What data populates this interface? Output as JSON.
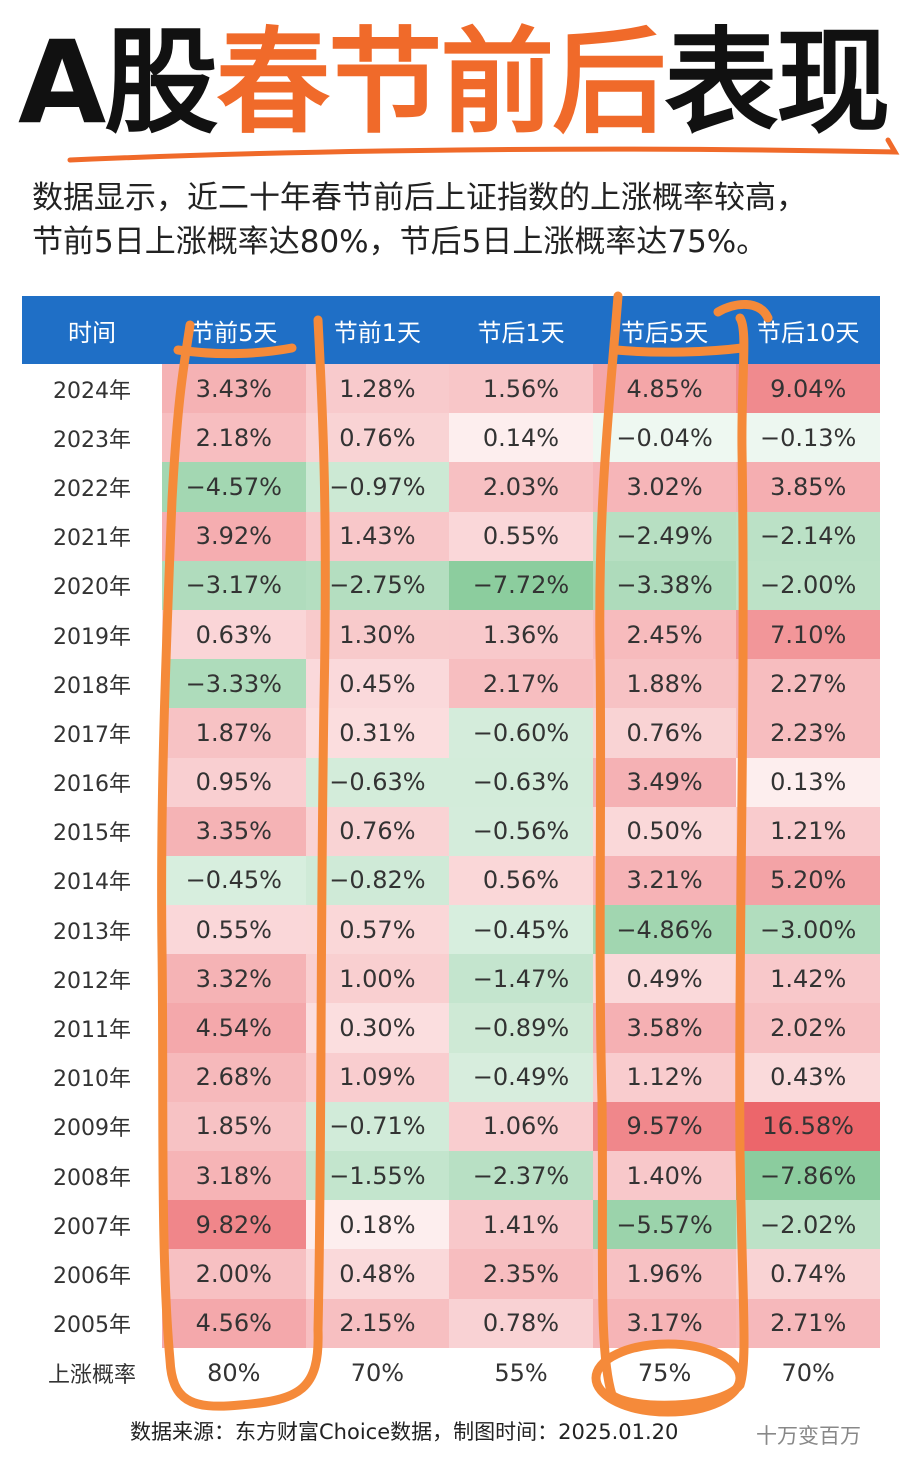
{
  "title": {
    "part1": "A股",
    "part2": "春节前后",
    "part3": "表现"
  },
  "subtitle": {
    "line1": "数据显示，近二十年春节前后上证指数的上涨概率较高，",
    "line2": "节前5日上涨概率达80%，节后5日上涨概率达75%。"
  },
  "table": {
    "headers": [
      "时间",
      "节前5天",
      "节前1天",
      "节后1天",
      "节后5天",
      "节后10天"
    ],
    "rows": [
      [
        "2024年",
        "3.43%",
        "1.28%",
        "1.56%",
        "4.85%",
        "9.04%"
      ],
      [
        "2023年",
        "2.18%",
        "0.76%",
        "0.14%",
        "−0.04%",
        "−0.13%"
      ],
      [
        "2022年",
        "−4.57%",
        "−0.97%",
        "2.03%",
        "3.02%",
        "3.85%"
      ],
      [
        "2021年",
        "3.92%",
        "1.43%",
        "0.55%",
        "−2.49%",
        "−2.14%"
      ],
      [
        "2020年",
        "−3.17%",
        "−2.75%",
        "−7.72%",
        "−3.38%",
        "−2.00%"
      ],
      [
        "2019年",
        "0.63%",
        "1.30%",
        "1.36%",
        "2.45%",
        "7.10%"
      ],
      [
        "2018年",
        "−3.33%",
        "0.45%",
        "2.17%",
        "1.88%",
        "2.27%"
      ],
      [
        "2017年",
        "1.87%",
        "0.31%",
        "−0.60%",
        "0.76%",
        "2.23%"
      ],
      [
        "2016年",
        "0.95%",
        "−0.63%",
        "−0.63%",
        "3.49%",
        "0.13%"
      ],
      [
        "2015年",
        "3.35%",
        "0.76%",
        "−0.56%",
        "0.50%",
        "1.21%"
      ],
      [
        "2014年",
        "−0.45%",
        "−0.82%",
        "0.56%",
        "3.21%",
        "5.20%"
      ],
      [
        "2013年",
        "0.55%",
        "0.57%",
        "−0.45%",
        "−4.86%",
        "−3.00%"
      ],
      [
        "2012年",
        "3.32%",
        "1.00%",
        "−1.47%",
        "0.49%",
        "1.42%"
      ],
      [
        "2011年",
        "4.54%",
        "0.30%",
        "−0.89%",
        "3.58%",
        "2.02%"
      ],
      [
        "2010年",
        "2.68%",
        "1.09%",
        "−0.49%",
        "1.12%",
        "0.43%"
      ],
      [
        "2009年",
        "1.85%",
        "−0.71%",
        "1.06%",
        "9.57%",
        "16.58%"
      ],
      [
        "2008年",
        "3.18%",
        "−1.55%",
        "−2.37%",
        "1.40%",
        "−7.86%"
      ],
      [
        "2007年",
        "9.82%",
        "0.18%",
        "1.41%",
        "−5.57%",
        "−2.02%"
      ],
      [
        "2006年",
        "2.00%",
        "0.48%",
        "2.35%",
        "1.96%",
        "0.74%"
      ],
      [
        "2005年",
        "4.56%",
        "2.15%",
        "0.78%",
        "3.17%",
        "2.71%"
      ]
    ],
    "summary": [
      "上涨概率",
      "80%",
      "70%",
      "55%",
      "75%",
      "70%"
    ]
  },
  "colors": {
    "header_bg": "#1f6fc6",
    "title_orange": "#f06a2a",
    "annotation": "#f58a3a",
    "positive": "#e8474d",
    "negative": "#3daa5c"
  },
  "source": "数据来源：东方财富Choice数据，制图时间：2025.01.20",
  "watermark": "十万变百万"
}
